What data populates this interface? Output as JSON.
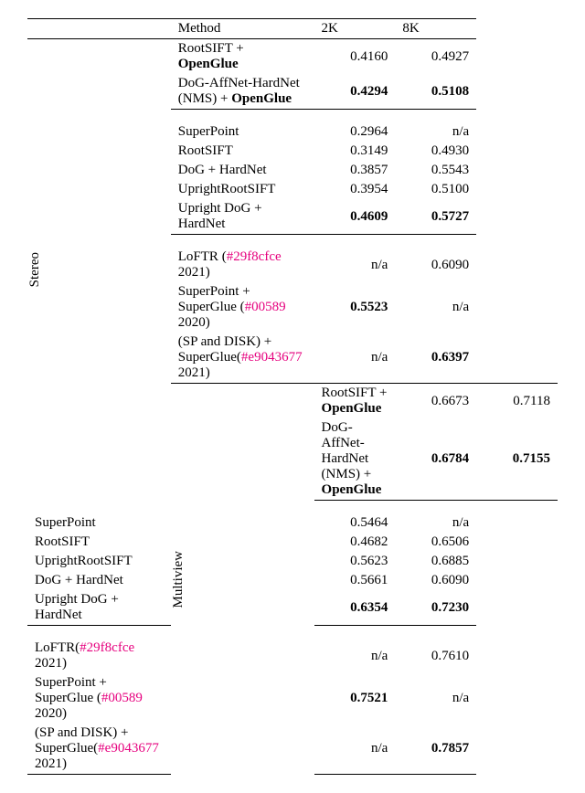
{
  "colors": {
    "hash": "#e6007e",
    "text": "#000000",
    "bg": "#ffffff"
  },
  "header": {
    "method": "Method",
    "c2k": "2K",
    "c8k": "8K"
  },
  "labels": {
    "stereo": "Stereo",
    "multiview": "Multiview"
  },
  "stereo": {
    "g1": [
      {
        "m": [
          "RootSIFT + ",
          "OpenGlue"
        ],
        "a": "0.4160",
        "b": "0.4927",
        "bold": [
          false,
          false
        ]
      },
      {
        "m": [
          "DoG-AffNet-HardNet (NMS) + ",
          "OpenGlue"
        ],
        "a": "0.4294",
        "b": "0.5108",
        "bold": [
          true,
          true
        ]
      }
    ],
    "g2": [
      {
        "m": [
          "SuperPoint"
        ],
        "a": "0.2964",
        "b": "n/a",
        "bold": [
          false,
          false
        ]
      },
      {
        "m": [
          "RootSIFT"
        ],
        "a": "0.3149",
        "b": "0.4930",
        "bold": [
          false,
          false
        ]
      },
      {
        "m": [
          "DoG + HardNet"
        ],
        "a": "0.3857",
        "b": "0.5543",
        "bold": [
          false,
          false
        ]
      },
      {
        "m": [
          "UprightRootSIFT"
        ],
        "a": "0.3954",
        "b": "0.5100",
        "bold": [
          false,
          false
        ]
      },
      {
        "m": [
          "Upright DoG + HardNet"
        ],
        "a": "0.4609",
        "b": "0.5727",
        "bold": [
          true,
          true
        ]
      }
    ],
    "g3": [
      {
        "m": [
          "LoFTR (",
          "#29f8cfce",
          " 2021)"
        ],
        "a": "n/a",
        "b": "0.6090",
        "bold": [
          false,
          false
        ]
      },
      {
        "m": [
          "SuperPoint + SuperGlue (",
          "#00589",
          " 2020)"
        ],
        "a": "0.5523",
        "b": "n/a",
        "bold": [
          true,
          false
        ]
      },
      {
        "m": [
          "(SP and DISK) + SuperGlue(",
          "#e9043677",
          " 2021)"
        ],
        "a": "n/a",
        "b": "0.6397",
        "bold": [
          false,
          true
        ]
      }
    ]
  },
  "multiview": {
    "g1": [
      {
        "m": [
          "RootSIFT + ",
          "OpenGlue"
        ],
        "a": "0.6673",
        "b": "0.7118",
        "bold": [
          false,
          false
        ]
      },
      {
        "m": [
          "DoG-AffNet-HardNet (NMS) + ",
          "OpenGlue"
        ],
        "a": "0.6784",
        "b": "0.7155",
        "bold": [
          true,
          true
        ]
      }
    ],
    "g2": [
      {
        "m": [
          "SuperPoint"
        ],
        "a": "0.5464",
        "b": "n/a",
        "bold": [
          false,
          false
        ]
      },
      {
        "m": [
          "RootSIFT"
        ],
        "a": "0.4682",
        "b": "0.6506",
        "bold": [
          false,
          false
        ]
      },
      {
        "m": [
          "UprightRootSIFT"
        ],
        "a": "0.5623",
        "b": "0.6885",
        "bold": [
          false,
          false
        ]
      },
      {
        "m": [
          "DoG + HardNet"
        ],
        "a": "0.5661",
        "b": "0.6090",
        "bold": [
          false,
          false
        ]
      },
      {
        "m": [
          "Upright DoG + HardNet"
        ],
        "a": "0.6354",
        "b": "0.7230",
        "bold": [
          true,
          true
        ]
      }
    ],
    "g3": [
      {
        "m": [
          "LoFTR(",
          "#29f8cfce",
          " 2021)"
        ],
        "a": "n/a",
        "b": "0.7610",
        "bold": [
          false,
          false
        ]
      },
      {
        "m": [
          "SuperPoint + SuperGlue (",
          "#00589",
          " 2020)"
        ],
        "a": "0.7521",
        "b": "n/a",
        "bold": [
          true,
          false
        ]
      },
      {
        "m": [
          "(SP and DISK) + SuperGlue(",
          "#e9043677",
          " 2021)"
        ],
        "a": "n/a",
        "b": "0.7857",
        "bold": [
          false,
          true
        ]
      }
    ]
  }
}
